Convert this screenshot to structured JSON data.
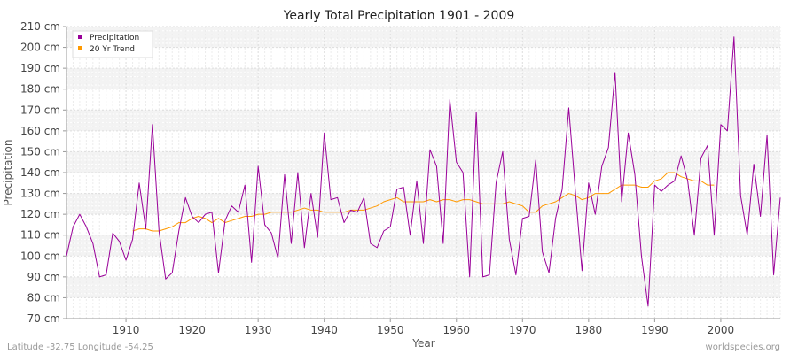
{
  "chart_data": {
    "type": "line",
    "title": "Yearly Total Precipitation 1901 - 2009",
    "xlabel": "Year",
    "ylabel": "Precipitation",
    "xlim": [
      1901,
      2009
    ],
    "ylim": [
      70,
      210
    ],
    "x_ticks": [
      1910,
      1920,
      1930,
      1940,
      1950,
      1960,
      1970,
      1980,
      1990,
      2000
    ],
    "y_ticks": [
      70,
      80,
      90,
      100,
      110,
      120,
      130,
      140,
      150,
      160,
      170,
      180,
      190,
      200,
      210
    ],
    "y_tick_suffix": " cm",
    "grid": true,
    "legend_position": "top-left",
    "series": [
      {
        "name": "Precipitation",
        "color": "#990099",
        "x": [
          1901,
          1902,
          1903,
          1904,
          1905,
          1906,
          1907,
          1908,
          1909,
          1910,
          1911,
          1912,
          1913,
          1914,
          1915,
          1916,
          1917,
          1918,
          1919,
          1920,
          1921,
          1922,
          1923,
          1924,
          1925,
          1926,
          1927,
          1928,
          1929,
          1930,
          1931,
          1932,
          1933,
          1934,
          1935,
          1936,
          1937,
          1938,
          1939,
          1940,
          1941,
          1942,
          1943,
          1944,
          1945,
          1946,
          1947,
          1948,
          1949,
          1950,
          1951,
          1952,
          1953,
          1954,
          1955,
          1956,
          1957,
          1958,
          1959,
          1960,
          1961,
          1962,
          1963,
          1964,
          1965,
          1966,
          1967,
          1968,
          1969,
          1970,
          1971,
          1972,
          1973,
          1974,
          1975,
          1976,
          1977,
          1978,
          1979,
          1980,
          1981,
          1982,
          1983,
          1984,
          1985,
          1986,
          1987,
          1988,
          1989,
          1990,
          1991,
          1992,
          1993,
          1994,
          1995,
          1996,
          1997,
          1998,
          1999,
          2000,
          2001,
          2002,
          2003,
          2004,
          2005,
          2006,
          2007,
          2008,
          2009
        ],
        "values": [
          100,
          114,
          120,
          114,
          106,
          90,
          91,
          111,
          107,
          98,
          108,
          135,
          113,
          163,
          112,
          89,
          92,
          112,
          128,
          119,
          116,
          120,
          121,
          92,
          117,
          124,
          121,
          134,
          97,
          143,
          115,
          111,
          99,
          139,
          106,
          140,
          104,
          130,
          109,
          159,
          127,
          128,
          116,
          122,
          121,
          128,
          106,
          104,
          112,
          114,
          132,
          133,
          110,
          136,
          106,
          151,
          143,
          106,
          175,
          145,
          140,
          90,
          169,
          90,
          91,
          135,
          150,
          108,
          91,
          118,
          119,
          146,
          102,
          92,
          118,
          132,
          171,
          131,
          93,
          135,
          120,
          143,
          152,
          188,
          126,
          159,
          139,
          100,
          76,
          134,
          131,
          134,
          136,
          148,
          136,
          110,
          147,
          153,
          110,
          163,
          160,
          205,
          129,
          110,
          144,
          119,
          158,
          91,
          128
        ]
      },
      {
        "name": "20 Yr Trend",
        "color": "#ff9900",
        "x": [
          1911,
          1912,
          1913,
          1914,
          1915,
          1916,
          1917,
          1918,
          1919,
          1920,
          1921,
          1922,
          1923,
          1924,
          1925,
          1926,
          1927,
          1928,
          1929,
          1930,
          1931,
          1932,
          1933,
          1934,
          1935,
          1936,
          1937,
          1938,
          1939,
          1940,
          1941,
          1942,
          1943,
          1944,
          1945,
          1946,
          1947,
          1948,
          1949,
          1950,
          1951,
          1952,
          1953,
          1954,
          1955,
          1956,
          1957,
          1958,
          1959,
          1960,
          1961,
          1962,
          1963,
          1964,
          1965,
          1966,
          1967,
          1968,
          1969,
          1970,
          1971,
          1972,
          1973,
          1974,
          1975,
          1976,
          1977,
          1978,
          1979,
          1980,
          1981,
          1982,
          1983,
          1984,
          1985,
          1986,
          1987,
          1988,
          1989,
          1990,
          1991,
          1992,
          1993,
          1994,
          1995,
          1996,
          1997,
          1998,
          1999
        ],
        "values": [
          112,
          113,
          113,
          112,
          112,
          113,
          114,
          116,
          116,
          118,
          119,
          118,
          116,
          118,
          116,
          117,
          118,
          119,
          119,
          120,
          120,
          121,
          121,
          121,
          121,
          122,
          123,
          122,
          122,
          121,
          121,
          121,
          121,
          122,
          122,
          122,
          123,
          124,
          126,
          127,
          128,
          126,
          126,
          126,
          126,
          127,
          126,
          127,
          127,
          126,
          127,
          127,
          126,
          125,
          125,
          125,
          125,
          126,
          125,
          124,
          121,
          121,
          124,
          125,
          126,
          128,
          130,
          129,
          127,
          128,
          130,
          130,
          130,
          132,
          134,
          134,
          134,
          133,
          133,
          136,
          137,
          140,
          140,
          138,
          137,
          136,
          136,
          134,
          134
        ]
      }
    ]
  },
  "footer": {
    "left": "Latitude -32.75 Longitude -54.25",
    "right": "worldspecies.org"
  }
}
